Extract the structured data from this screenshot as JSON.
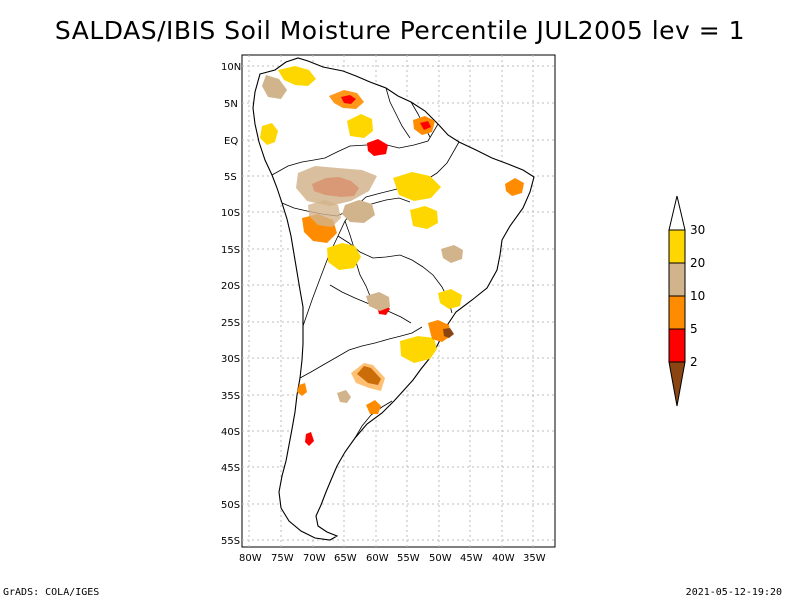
{
  "title": "SALDAS/IBIS Soil Moisture Percentile JUL2005 lev = 1",
  "footer": {
    "left": "GrADS: COLA/IGES",
    "right": "2021-05-12-19:20"
  },
  "map": {
    "lat_labels": [
      "10N",
      "5N",
      "EQ",
      "5S",
      "10S",
      "15S",
      "20S",
      "25S",
      "30S",
      "35S",
      "40S",
      "45S",
      "50S",
      "55S"
    ],
    "lon_labels": [
      "80W",
      "75W",
      "70W",
      "65W",
      "60W",
      "55W",
      "50W",
      "45W",
      "40W",
      "35W"
    ]
  },
  "legend": {
    "labels": [
      "30",
      "20",
      "10",
      "5",
      "2"
    ],
    "colors": {
      "above30": "#ffffff",
      "20to30": "#ffd700",
      "10to20": "#d2b48c",
      "5to10": "#ff8c00",
      "2to5": "#ff0000",
      "below2": "#8b4513"
    }
  }
}
